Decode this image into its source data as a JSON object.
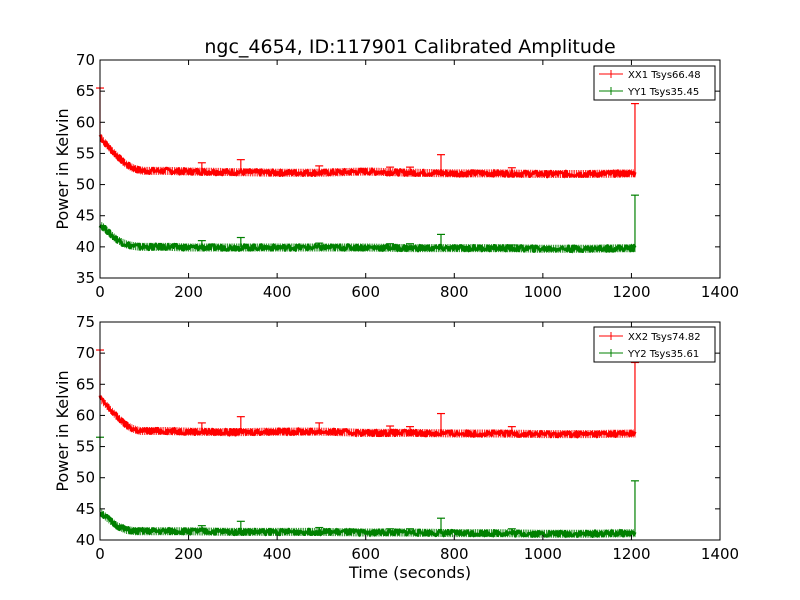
{
  "figure": {
    "title": "ngc_4654, ID:117901 Calibrated Amplitude",
    "colors": {
      "xx": "#ff0000",
      "yy": "#008000",
      "axes": "#000000"
    }
  },
  "chart_data": [
    {
      "type": "line",
      "title": "ngc_4654, ID:117901 Calibrated Amplitude",
      "xlabel": "",
      "ylabel": "Power in Kelvin",
      "xlim": [
        0,
        1400
      ],
      "ylim": [
        35,
        70
      ],
      "xticks": [
        0,
        200,
        400,
        600,
        800,
        1000,
        1200,
        1400
      ],
      "yticks": [
        35,
        40,
        45,
        50,
        55,
        60,
        65,
        70
      ],
      "grid": false,
      "legend": "top-right",
      "series": [
        {
          "name": "XX1 Tsys66.48",
          "color": "#ff0000",
          "x": [
            0,
            5,
            10,
            20,
            30,
            40,
            50,
            60,
            70,
            80,
            90,
            100,
            150,
            200,
            300,
            400,
            500,
            600,
            700,
            800,
            900,
            1000,
            1100,
            1208
          ],
          "y": [
            58.0,
            57.2,
            56.8,
            56.0,
            55.2,
            54.5,
            53.8,
            53.2,
            52.8,
            52.5,
            52.3,
            52.2,
            52.2,
            52.1,
            52.0,
            51.9,
            51.9,
            52.1,
            51.9,
            51.8,
            51.8,
            51.7,
            51.7,
            51.8
          ],
          "spikes": [
            [
              0,
              65.5
            ],
            [
              230,
              53.5
            ],
            [
              318,
              54.0
            ],
            [
              495,
              53.0
            ],
            [
              655,
              52.8
            ],
            [
              700,
              52.8
            ],
            [
              770,
              54.8
            ],
            [
              930,
              52.7
            ],
            [
              1208,
              63.0
            ]
          ]
        },
        {
          "name": "YY1 Tsys35.45",
          "color": "#008000",
          "x": [
            0,
            5,
            10,
            20,
            30,
            40,
            50,
            60,
            70,
            80,
            90,
            100,
            150,
            200,
            300,
            400,
            500,
            600,
            700,
            800,
            900,
            1000,
            1100,
            1208
          ],
          "y": [
            43.5,
            43.3,
            43.0,
            42.3,
            41.6,
            41.1,
            40.7,
            40.4,
            40.2,
            40.1,
            40.0,
            40.0,
            40.0,
            39.9,
            39.9,
            39.9,
            39.9,
            39.9,
            39.8,
            39.8,
            39.8,
            39.7,
            39.7,
            39.8
          ],
          "spikes": [
            [
              230,
              41.0
            ],
            [
              318,
              41.5
            ],
            [
              495,
              40.6
            ],
            [
              655,
              40.5
            ],
            [
              700,
              40.5
            ],
            [
              770,
              42.0
            ],
            [
              930,
              40.3
            ],
            [
              1208,
              48.3
            ]
          ]
        }
      ]
    },
    {
      "type": "line",
      "title": "",
      "xlabel": "Time (seconds)",
      "ylabel": "Power in Kelvin",
      "xlim": [
        0,
        1400
      ],
      "ylim": [
        40,
        75
      ],
      "xticks": [
        0,
        200,
        400,
        600,
        800,
        1000,
        1200,
        1400
      ],
      "yticks": [
        40,
        45,
        50,
        55,
        60,
        65,
        70,
        75
      ],
      "grid": false,
      "legend": "top-right",
      "series": [
        {
          "name": "XX2 Tsys74.82",
          "color": "#ff0000",
          "x": [
            0,
            5,
            10,
            20,
            30,
            40,
            50,
            60,
            70,
            80,
            90,
            100,
            150,
            200,
            300,
            400,
            500,
            600,
            700,
            800,
            900,
            1000,
            1100,
            1208
          ],
          "y": [
            63.0,
            62.3,
            62.0,
            61.2,
            60.4,
            59.7,
            59.0,
            58.4,
            58.0,
            57.7,
            57.5,
            57.5,
            57.5,
            57.4,
            57.3,
            57.4,
            57.4,
            57.2,
            57.2,
            57.1,
            57.1,
            57.0,
            57.0,
            57.1
          ],
          "spikes": [
            [
              0,
              70.5
            ],
            [
              230,
              58.8
            ],
            [
              318,
              59.8
            ],
            [
              495,
              58.8
            ],
            [
              655,
              58.3
            ],
            [
              700,
              58.2
            ],
            [
              770,
              60.3
            ],
            [
              930,
              58.2
            ],
            [
              1208,
              68.5
            ]
          ]
        },
        {
          "name": "YY2 Tsys35.61",
          "color": "#008000",
          "x": [
            0,
            5,
            10,
            20,
            30,
            40,
            50,
            60,
            70,
            80,
            90,
            100,
            150,
            200,
            300,
            400,
            500,
            600,
            700,
            800,
            900,
            1000,
            1100,
            1208
          ],
          "y": [
            44.5,
            44.2,
            43.9,
            43.3,
            42.7,
            42.2,
            41.9,
            41.6,
            41.5,
            41.4,
            41.4,
            41.4,
            41.4,
            41.4,
            41.3,
            41.3,
            41.3,
            41.2,
            41.2,
            41.1,
            41.1,
            41.0,
            41.0,
            41.1
          ],
          "spikes": [
            [
              0,
              56.5
            ],
            [
              230,
              42.3
            ],
            [
              318,
              43.0
            ],
            [
              495,
              42.0
            ],
            [
              655,
              41.8
            ],
            [
              700,
              41.8
            ],
            [
              770,
              43.5
            ],
            [
              930,
              41.8
            ],
            [
              1208,
              49.5
            ]
          ]
        }
      ]
    }
  ]
}
